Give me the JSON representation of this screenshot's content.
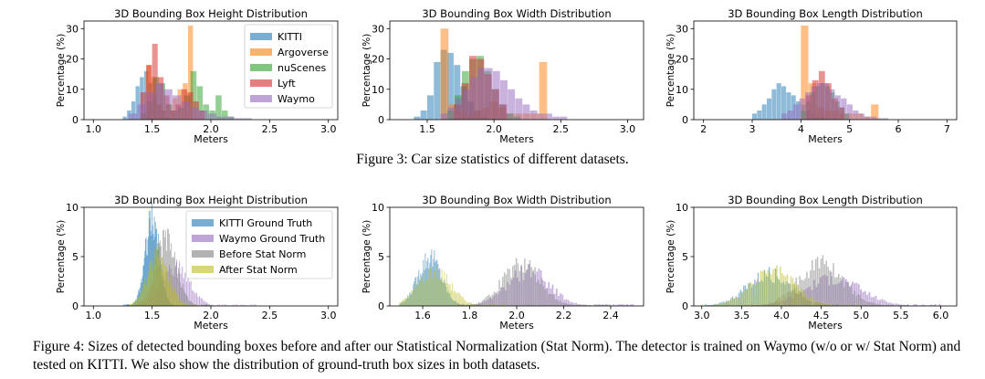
{
  "colors": {
    "KITTI": "#1f77b4",
    "Argoverse": "#ff7f0e",
    "nuScenes": "#2ca02c",
    "Lyft": "#d62728",
    "Waymo": "#9467bd",
    "KITTI Ground Truth": "#1f77b4",
    "Waymo Ground Truth": "#9467bd",
    "Before Stat Norm": "#7f7f7f",
    "After Stat Norm": "#bcbd22"
  },
  "captions": {
    "fig3_label": "Figure 3:",
    "fig3_text": "Car size statistics of different datasets.",
    "fig4_label": "Figure 4:",
    "fig4_text": "Sizes of detected bounding boxes before and after our Statistical Normalization (Stat Norm). The detector is trained on Waymo (w/o or w/ Stat Norm) and tested on KITTI. We also show the distribution of ground-truth box sizes in both datasets."
  },
  "chart_data": [
    {
      "type": "bar",
      "title": "3D Bounding Box Height Distribution",
      "xlabel": "Meters",
      "ylabel": "Percentage (%)",
      "xlim": [
        0.92,
        3.08
      ],
      "ylim": [
        0,
        32.5
      ],
      "xticks": [
        "1.0",
        "1.5",
        "2.0",
        "2.5",
        "3.0"
      ],
      "yticks": [
        "0",
        "10",
        "20",
        "30"
      ],
      "legend": "top-right",
      "series": [
        {
          "name": "KITTI",
          "bins": [
            [
              1.25,
              1.65,
              [
                1,
                3,
                6,
                11,
                14,
                16,
                12,
                8,
                5,
                3,
                1
              ]
            ]
          ]
        },
        {
          "name": "Argoverse",
          "bins": [
            [
              1.45,
              1.85,
              [
                18,
                14,
                5,
                3,
                5,
                7,
                10,
                12,
                31
              ]
            ]
          ]
        },
        {
          "name": "nuScenes",
          "bins": [
            [
              1.4,
              2.2,
              [
                2,
                6,
                14,
                12,
                5,
                3,
                4,
                8,
                16,
                11,
                5,
                3,
                8,
                3,
                1
              ]
            ]
          ]
        },
        {
          "name": "Lyft",
          "bins": [
            [
              1.4,
              1.95,
              [
                9,
                18,
                25,
                14,
                8,
                3,
                5,
                10,
                9,
                6,
                3
              ]
            ]
          ]
        },
        {
          "name": "Waymo",
          "bins": [
            [
              1.3,
              2.35,
              [
                2,
                5,
                9,
                12,
                10,
                8,
                6,
                4,
                3,
                2,
                1,
                1,
                0.5,
                0.5
              ]
            ]
          ]
        }
      ]
    },
    {
      "type": "bar",
      "title": "3D Bounding Box Width Distribution",
      "xlabel": "Meters",
      "ylabel": "Percentage (%)",
      "xlim": [
        1.22,
        3.12
      ],
      "ylim": [
        0,
        32.5
      ],
      "xticks": [
        "1.5",
        "2.0",
        "2.5",
        "3.0"
      ],
      "yticks": [
        "0",
        "10",
        "20",
        "30"
      ],
      "series": [
        {
          "name": "KITTI",
          "bins": [
            [
              1.4,
              1.95,
              [
                1,
                3,
                8,
                19,
                23,
                22,
                18,
                11,
                6,
                3,
                1
              ]
            ]
          ]
        },
        {
          "name": "Argoverse",
          "bins": [
            [
              1.6,
              2.4,
              [
                30,
                5,
                3,
                2,
                3,
                4,
                6,
                4,
                2,
                2,
                2,
                2,
                19
              ]
            ]
          ]
        },
        {
          "name": "nuScenes",
          "bins": [
            [
              1.65,
              2.2,
              [
                3,
                8,
                16,
                20,
                21,
                16,
                10,
                5,
                2,
                1
              ]
            ]
          ]
        },
        {
          "name": "Lyft",
          "bins": [
            [
              1.7,
              2.1,
              [
                5,
                12,
                21,
                20,
                15,
                10,
                5
              ]
            ]
          ]
        },
        {
          "name": "Waymo",
          "bins": [
            [
              1.6,
              2.55,
              [
                2,
                4,
                7,
                10,
                14,
                17,
                17,
                16,
                13,
                10,
                7,
                5,
                3,
                2,
                2,
                1,
                1
              ]
            ]
          ]
        }
      ]
    },
    {
      "type": "bar",
      "title": "3D Bounding Box Length Distribution",
      "xlabel": "Meters",
      "ylabel": "Percentage (%)",
      "xlim": [
        1.8,
        7.2
      ],
      "ylim": [
        0,
        32.5
      ],
      "xticks": [
        "2",
        "3",
        "4",
        "5",
        "6",
        "7"
      ],
      "yticks": [
        "0",
        "10",
        "20",
        "30"
      ],
      "series": [
        {
          "name": "KITTI",
          "bins": [
            [
              3.0,
              4.5,
              [
                2,
                3,
                5,
                7,
                10,
                12,
                11,
                9,
                8,
                6,
                5,
                3,
                2,
                1,
                1
              ]
            ]
          ]
        },
        {
          "name": "Argoverse",
          "bins": [
            [
              4.0,
              5.6,
              [
                31,
                12,
                4,
                3,
                3,
                2,
                2,
                2,
                1,
                5
              ]
            ]
          ]
        },
        {
          "name": "nuScenes",
          "bins": [
            [
              4.0,
              5.0,
              [
                3,
                6,
                9,
                11,
                12,
                11,
                9,
                6,
                4,
                2
              ]
            ]
          ]
        },
        {
          "name": "Lyft",
          "bins": [
            [
              4.1,
              4.9,
              [
                8,
                13,
                16,
                12,
                7,
                4
              ]
            ]
          ]
        },
        {
          "name": "Waymo",
          "bins": [
            [
              3.6,
              5.8,
              [
                2,
                3,
                5,
                7,
                9,
                11,
                12,
                12,
                10,
                8,
                7,
                5,
                3,
                2,
                1,
                1,
                0.5,
                0.5
              ]
            ]
          ]
        }
      ]
    },
    {
      "type": "bar",
      "title": "3D Bounding Box Height Distribution",
      "xlabel": "Meters",
      "ylabel": "Percentage (%)",
      "xlim": [
        0.92,
        3.08
      ],
      "ylim": [
        0,
        10
      ],
      "xticks": [
        "1.0",
        "1.5",
        "2.0",
        "2.5",
        "3.0"
      ],
      "yticks": [
        "0",
        "5",
        "10"
      ],
      "legend": "top-right",
      "series": [
        {
          "name": "KITTI Ground Truth",
          "dist": [
            1.5,
            0.06,
            8.6,
            1.25,
            1.7
          ]
        },
        {
          "name": "Waymo Ground Truth",
          "dist": [
            1.7,
            0.12,
            3.8,
            1.3,
            2.4
          ]
        },
        {
          "name": "Before Stat Norm",
          "dist": [
            1.62,
            0.09,
            6.5,
            1.3,
            2.0
          ]
        },
        {
          "name": "After Stat Norm",
          "dist": [
            1.55,
            0.09,
            5.2,
            1.3,
            1.9
          ]
        }
      ]
    },
    {
      "type": "bar",
      "title": "3D Bounding Box Width Distribution",
      "xlabel": "Meters",
      "ylabel": "Percentage (%)",
      "xlim": [
        1.46,
        2.54
      ],
      "ylim": [
        0,
        10
      ],
      "xticks": [
        "1.6",
        "1.8",
        "2.0",
        "2.2",
        "2.4"
      ],
      "yticks": [
        "0",
        "5",
        "10"
      ],
      "series": [
        {
          "name": "KITTI Ground Truth",
          "dist": [
            1.63,
            0.05,
            5.0,
            1.5,
            1.85
          ]
        },
        {
          "name": "Waymo Ground Truth",
          "dist": [
            2.05,
            0.09,
            3.5,
            1.75,
            2.5
          ]
        },
        {
          "name": "Before Stat Norm",
          "dist": [
            2.02,
            0.08,
            4.2,
            1.75,
            2.4
          ]
        },
        {
          "name": "After Stat Norm",
          "dist": [
            1.65,
            0.07,
            3.5,
            1.5,
            1.95
          ]
        }
      ]
    },
    {
      "type": "bar",
      "title": "3D Bounding Box Length Distribution",
      "xlabel": "Meters",
      "ylabel": "Percentage (%)",
      "xlim": [
        2.9,
        6.2
      ],
      "ylim": [
        0,
        10
      ],
      "xticks": [
        "3.0",
        "3.5",
        "4.0",
        "4.5",
        "5.0",
        "5.5",
        "6.0"
      ],
      "yticks": [
        "0",
        "5",
        "10"
      ],
      "series": [
        {
          "name": "KITTI Ground Truth",
          "dist": [
            3.85,
            0.28,
            3.2,
            3.0,
            4.8
          ]
        },
        {
          "name": "Waymo Ground Truth",
          "dist": [
            4.65,
            0.35,
            2.8,
            3.6,
            6.0
          ]
        },
        {
          "name": "Before Stat Norm",
          "dist": [
            4.5,
            0.28,
            4.3,
            3.6,
            5.6
          ]
        },
        {
          "name": "After Stat Norm",
          "dist": [
            3.9,
            0.28,
            3.4,
            3.0,
            5.0
          ]
        }
      ]
    }
  ]
}
